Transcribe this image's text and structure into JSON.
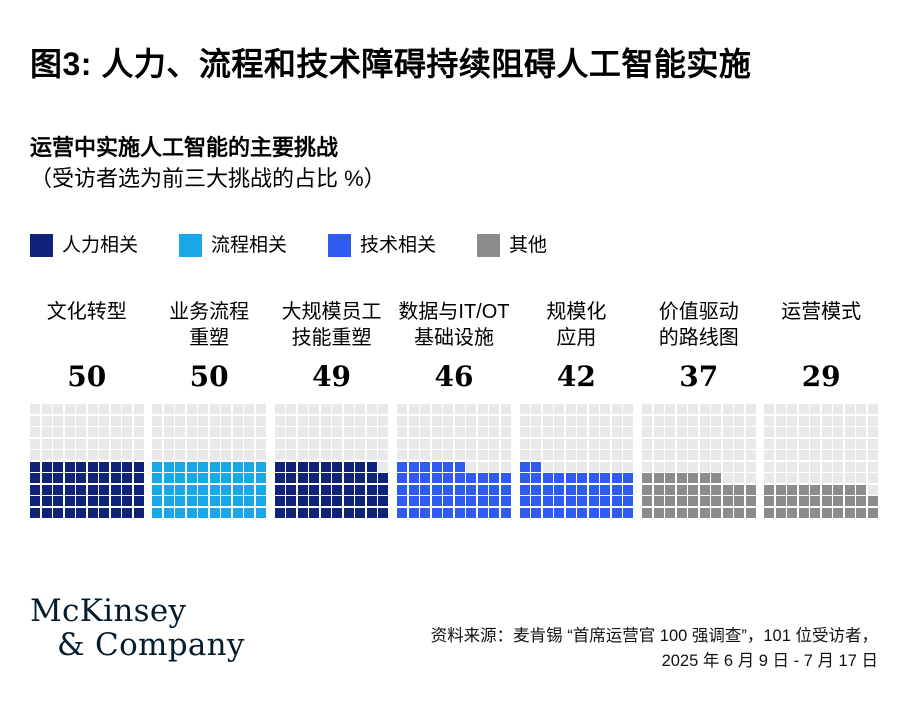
{
  "title": "图3: 人力、流程和技术障碍持续阻碍人工智能实施",
  "subtitle": {
    "line1": "运营中实施人工智能的主要挑战",
    "line2": "（受访者选为前三大挑战的占比 %）"
  },
  "legend": [
    {
      "label": "人力相关",
      "color": "#10237B"
    },
    {
      "label": "流程相关",
      "color": "#18A8E8"
    },
    {
      "label": "技术相关",
      "color": "#2F5BF0"
    },
    {
      "label": "其他",
      "color": "#8C8C8C"
    }
  ],
  "chart_data": {
    "type": "waffle",
    "title": "运营中实施人工智能的主要挑战",
    "unit_label": "受访者选为前三大挑战的占比 %",
    "grid": {
      "rows": 10,
      "cols": 10,
      "fill_order": "bottom-up-left-to-right"
    },
    "empty_color": "#E9E9E9",
    "categories": [
      {
        "label": "文化转型",
        "value": 50,
        "group": "人力相关",
        "color": "#10237B"
      },
      {
        "label": "业务流程\n重塑",
        "value": 50,
        "group": "流程相关",
        "color": "#18A8E8"
      },
      {
        "label": "大规模员工\n技能重塑",
        "value": 49,
        "group": "人力相关",
        "color": "#10237B"
      },
      {
        "label": "数据与IT/OT\n基础设施",
        "value": 46,
        "group": "技术相关",
        "color": "#2F5BF0"
      },
      {
        "label": "规模化\n应用",
        "value": 42,
        "group": "技术相关",
        "color": "#2F5BF0"
      },
      {
        "label": "价值驱动\n的路线图",
        "value": 37,
        "group": "其他",
        "color": "#8C8C8C"
      },
      {
        "label": "运营模式",
        "value": 29,
        "group": "其他",
        "color": "#8C8C8C"
      }
    ]
  },
  "footer": {
    "logo_line1": "McKinsey",
    "logo_line2": "& Company",
    "source_line1": "资料来源：麦肯锡 “首席运营官 100 强调查”，101 位受访者，",
    "source_line2": "2025 年 6 月 9 日 - 7 月 17 日"
  }
}
